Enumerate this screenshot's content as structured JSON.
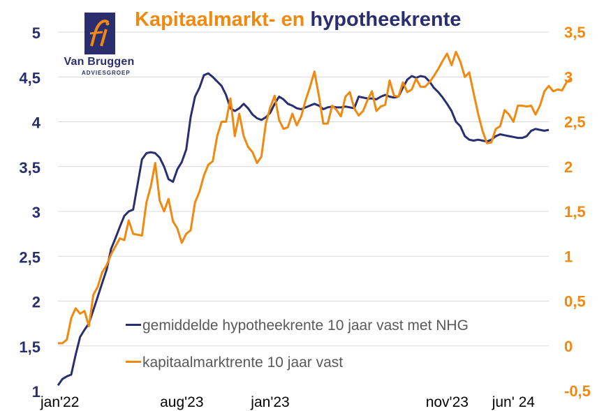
{
  "header": {
    "title_part1": "Kapitaalmarkt- en",
    "title_part2": "hypotheekrente"
  },
  "logo": {
    "name": "Van Bruggen",
    "subtitle": "ADVIESGROEP"
  },
  "colors": {
    "mortgage": "#2a2e6e",
    "capital": "#f0890f",
    "grid": "#d9d9d9"
  },
  "chart_data": {
    "type": "line",
    "title": "Kapitaalmarkt- en hypotheekrente",
    "x_tick_labels": [
      {
        "label": "jan'22",
        "at": 0
      },
      {
        "label": "aug'23",
        "at": 28
      },
      {
        "label": "jan'23",
        "at": 48
      },
      {
        "label": "nov'23",
        "at": 88
      },
      {
        "label": "jun' 24",
        "at": 103
      }
    ],
    "y_left": {
      "min": 1,
      "max": 5,
      "step": 0.5,
      "ticks": [
        "1",
        "1,5",
        "2",
        "2,5",
        "3",
        "3,5",
        "4",
        "4,5",
        "5"
      ]
    },
    "y_right": {
      "min": -0.5,
      "max": 3.5,
      "step": 0.5,
      "ticks": [
        "-0,5",
        "0",
        "0,5",
        "1",
        "1,5",
        "2",
        "2,5",
        "3",
        "3,5"
      ]
    },
    "grid": "horizontal",
    "legend_position": "bottom-center",
    "series": [
      {
        "name": "gemiddelde hypotheekrente 10 jaar vast met NHG",
        "axis": "left",
        "values": [
          1.06,
          1.13,
          1.16,
          1.18,
          1.4,
          1.6,
          1.68,
          1.75,
          1.9,
          2.05,
          2.2,
          2.35,
          2.58,
          2.7,
          2.83,
          2.95,
          3.0,
          3.02,
          3.3,
          3.58,
          3.65,
          3.66,
          3.65,
          3.6,
          3.5,
          3.36,
          3.33,
          3.47,
          3.55,
          3.69,
          4.05,
          4.28,
          4.38,
          4.52,
          4.54,
          4.5,
          4.45,
          4.4,
          4.3,
          4.15,
          4.12,
          4.15,
          4.2,
          4.15,
          4.08,
          4.04,
          4.02,
          4.05,
          4.1,
          4.2,
          4.28,
          4.25,
          4.2,
          4.18,
          4.15,
          4.14,
          4.16,
          4.18,
          4.2,
          4.18,
          4.14,
          4.16,
          4.17,
          4.16,
          4.16,
          4.17,
          4.16,
          4.15,
          4.28,
          4.27,
          4.26,
          4.26,
          4.25,
          4.28,
          4.3,
          4.28,
          4.27,
          4.28,
          4.38,
          4.47,
          4.51,
          4.49,
          4.51,
          4.5,
          4.45,
          4.38,
          4.33,
          4.27,
          4.2,
          4.12,
          4.0,
          3.95,
          3.84,
          3.8,
          3.79,
          3.8,
          3.79,
          3.78,
          3.8,
          3.84,
          3.86,
          3.85,
          3.84,
          3.83,
          3.82,
          3.82,
          3.84,
          3.9,
          3.92,
          3.91,
          3.9,
          3.91
        ]
      },
      {
        "name": "kapitaalmarktrente 10 jaar vast",
        "axis": "right",
        "values": [
          0.03,
          0.03,
          0.07,
          0.31,
          0.42,
          0.36,
          0.39,
          0.22,
          0.57,
          0.66,
          0.82,
          0.9,
          1.02,
          1.11,
          1.2,
          1.18,
          1.4,
          1.25,
          1.24,
          1.23,
          1.6,
          1.78,
          2.04,
          1.62,
          1.5,
          1.64,
          1.39,
          1.31,
          1.15,
          1.25,
          1.29,
          1.6,
          1.72,
          1.9,
          2.02,
          2.06,
          2.34,
          2.5,
          2.5,
          2.76,
          2.34,
          2.59,
          2.34,
          2.22,
          2.16,
          2.04,
          2.11,
          2.48,
          2.66,
          2.79,
          2.52,
          2.42,
          2.44,
          2.59,
          2.46,
          2.56,
          2.74,
          2.89,
          3.06,
          2.79,
          2.48,
          2.48,
          2.68,
          2.63,
          2.56,
          2.78,
          2.83,
          2.65,
          2.57,
          2.62,
          2.74,
          2.84,
          2.62,
          2.67,
          2.69,
          2.96,
          2.79,
          2.78,
          2.94,
          2.83,
          2.86,
          2.98,
          2.89,
          2.89,
          2.94,
          3.01,
          3.09,
          3.18,
          3.26,
          3.13,
          3.28,
          3.17,
          3.0,
          3.05,
          2.82,
          2.59,
          2.4,
          2.26,
          2.27,
          2.42,
          2.45,
          2.63,
          2.58,
          2.5,
          2.68,
          2.68,
          2.67,
          2.68,
          2.58,
          2.68,
          2.84,
          2.9,
          2.84,
          2.86,
          2.85,
          2.94,
          2.98
        ]
      }
    ]
  }
}
